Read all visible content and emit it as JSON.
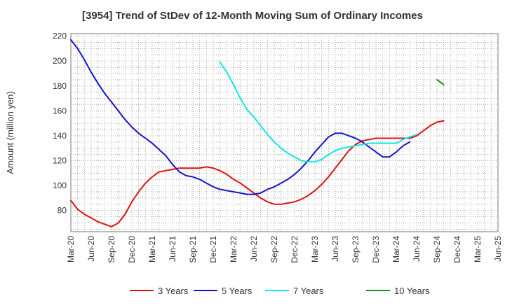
{
  "chart_data": {
    "type": "line",
    "title": "[3954]  Trend of StDev of 12-Month Moving Sum of Ordinary Incomes",
    "xlabel": "",
    "ylabel": "Amount (million yen)",
    "ylim": [
      63,
      222
    ],
    "y_ticks": [
      80,
      100,
      120,
      140,
      160,
      180,
      200,
      220
    ],
    "grid": true,
    "legend_position": "bottom",
    "x_tick_labels": [
      "Mar-20",
      "Jun-20",
      "Sep-20",
      "Dec-20",
      "Mar-21",
      "Jun-21",
      "Sep-21",
      "Dec-21",
      "Mar-22",
      "Jun-22",
      "Sep-22",
      "Dec-22",
      "Mar-23",
      "Jun-23",
      "Sep-23",
      "Dec-23",
      "Mar-24",
      "Jun-24",
      "Sep-24",
      "Dec-24",
      "Mar-25",
      "Jun-25"
    ],
    "series": [
      {
        "name": "3 Years",
        "color": "#dd1111",
        "start_index": 0,
        "values": [
          88,
          81,
          77,
          74,
          71,
          69,
          67,
          70,
          77,
          87,
          95,
          102,
          107,
          111,
          112,
          113,
          114,
          114,
          114,
          114,
          115,
          114,
          112,
          109,
          105,
          102,
          98,
          94,
          90,
          87,
          85,
          85,
          86,
          87,
          89,
          92,
          96,
          101,
          107,
          114,
          121,
          128,
          133,
          136,
          137,
          138,
          138,
          138,
          138,
          138,
          138,
          140,
          144,
          148,
          151,
          152
        ]
      },
      {
        "name": "5 Years",
        "color": "#1414cc",
        "start_index": 0,
        "values": [
          217,
          210,
          201,
          191,
          182,
          174,
          167,
          160,
          153,
          147,
          142,
          138,
          134,
          129,
          124,
          117,
          111,
          108,
          107,
          105,
          102,
          99,
          97,
          96,
          95,
          94,
          93,
          93,
          94,
          97,
          99,
          102,
          105,
          109,
          114,
          120,
          127,
          133,
          139,
          142,
          142,
          140,
          138,
          135,
          131,
          127,
          123,
          123,
          127,
          132,
          135
        ]
      },
      {
        "name": "7 Years",
        "color": "#11e6e6",
        "start_index": 22,
        "values": [
          199,
          191,
          181,
          170,
          161,
          155,
          148,
          141,
          135,
          130,
          126,
          123,
          120,
          119,
          119,
          121,
          125,
          128,
          130,
          131,
          132,
          133,
          134,
          134,
          134,
          134,
          134,
          137,
          139,
          141
        ]
      },
      {
        "name": "10 Years",
        "color": "#228822",
        "start_index": 54,
        "values": [
          185,
          181
        ]
      }
    ]
  }
}
